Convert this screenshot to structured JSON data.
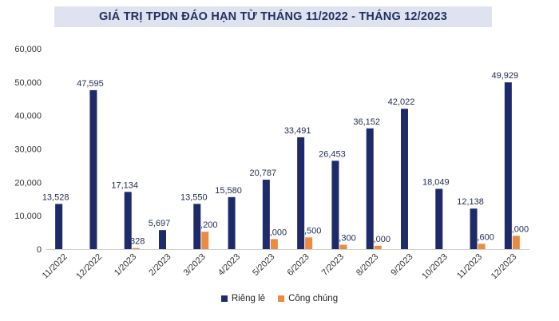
{
  "chart_data": {
    "type": "bar",
    "title": "GIÁ TRỊ TPDN ĐÁO HẠN TỪ THÁNG 11/2022 - THÁNG 12/2023",
    "categories": [
      "11/2022",
      "12/2022",
      "1/2023",
      "2/2023",
      "3/2023",
      "4/2023",
      "5/2023",
      "6/2023",
      "7/2023",
      "8/2023",
      "9/2023",
      "10/2023",
      "11/2023",
      "12/2023"
    ],
    "series": [
      {
        "name": "Riêng lẻ",
        "color": "#1f2a6b",
        "values": [
          13528,
          47595,
          17134,
          5697,
          13550,
          15580,
          20787,
          33491,
          26453,
          36152,
          42022,
          18049,
          12138,
          49929
        ],
        "labels": [
          "13,528",
          "47,595",
          "17,134",
          "5,697",
          "13,550",
          "15,580",
          "20,787",
          "33,491",
          "26,453",
          "36,152",
          "42,022",
          "18,049",
          "12,138",
          "49,929"
        ]
      },
      {
        "name": "Công chúng",
        "color": "#ec8a3f",
        "values": [
          null,
          null,
          328,
          null,
          5200,
          null,
          3000,
          3500,
          1300,
          1000,
          null,
          null,
          1600,
          4000
        ],
        "labels": [
          null,
          null,
          "328",
          null,
          "5,200",
          null,
          "3,000",
          "3,500",
          "1,300",
          "1,000",
          null,
          null,
          "1,600",
          "4,000"
        ]
      }
    ],
    "ylim": [
      0,
      60000
    ],
    "yticks": [
      0,
      10000,
      20000,
      30000,
      40000,
      50000,
      60000
    ],
    "ytick_labels": [
      "0",
      "10,000",
      "20,000",
      "30,000",
      "40,000",
      "50,000",
      "60,000"
    ],
    "grid": false,
    "legend": "bottom"
  }
}
